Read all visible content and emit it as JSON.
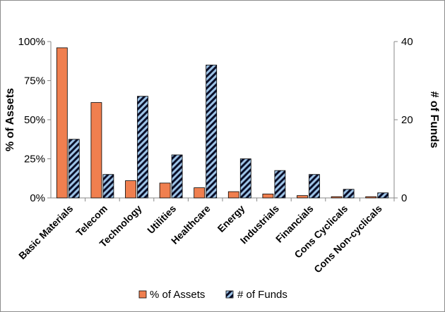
{
  "chart_data": {
    "type": "bar",
    "categories": [
      "Basic Materials",
      "Telecom",
      "Technology",
      "Utilities",
      "Healthcare",
      "Energy",
      "Industrials",
      "Financials",
      "Cons Cyclicals",
      "Cons Non-cyclicals"
    ],
    "series": [
      {
        "name": "% of Assets",
        "axis": "left",
        "values": [
          96,
          61,
          11,
          9.5,
          6.5,
          4,
          2.5,
          1.5,
          0.8,
          0.8
        ],
        "color": "#f07f4f",
        "pattern": "solid"
      },
      {
        "name": "# of Funds",
        "axis": "right",
        "values": [
          15,
          6,
          26,
          11,
          34,
          10,
          7,
          6,
          2.2,
          1.3
        ],
        "color": "#9dc3e6",
        "pattern": "diagonal-stripes"
      }
    ],
    "ylabel": "% of Assets",
    "y2label": "# of Funds",
    "ylim": [
      0,
      100
    ],
    "y2lim": [
      0,
      40
    ],
    "yticks": [
      "0%",
      "25%",
      "50%",
      "75%",
      "100%"
    ],
    "y2ticks": [
      "0",
      "20",
      "40"
    ],
    "grid": false,
    "legend_position": "bottom",
    "legend": [
      "% of Assets",
      "# of Funds"
    ]
  }
}
